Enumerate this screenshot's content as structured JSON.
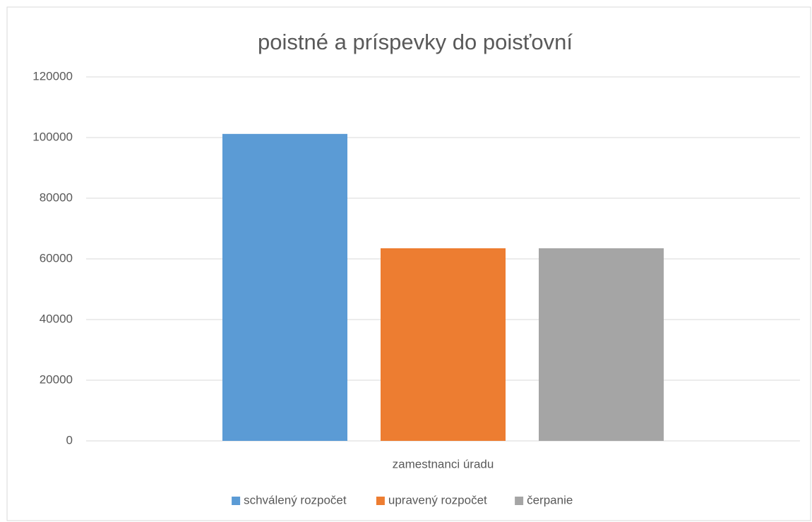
{
  "chart_data": {
    "type": "bar",
    "title": "poistné a príspevky do poisťovní",
    "categories": [
      "zamestnanci úradu"
    ],
    "series": [
      {
        "name": "schválený rozpočet",
        "color": "#5b9bd5",
        "values": [
          101200
        ]
      },
      {
        "name": "upravený rozpočet",
        "color": "#ed7d31",
        "values": [
          63500
        ]
      },
      {
        "name": "čerpanie",
        "color": "#a5a5a5",
        "values": [
          63500
        ]
      }
    ],
    "ylim": [
      0,
      120000
    ],
    "yticks": [
      0,
      20000,
      40000,
      60000,
      80000,
      100000,
      120000
    ],
    "grid": true,
    "legend": "bottom"
  }
}
